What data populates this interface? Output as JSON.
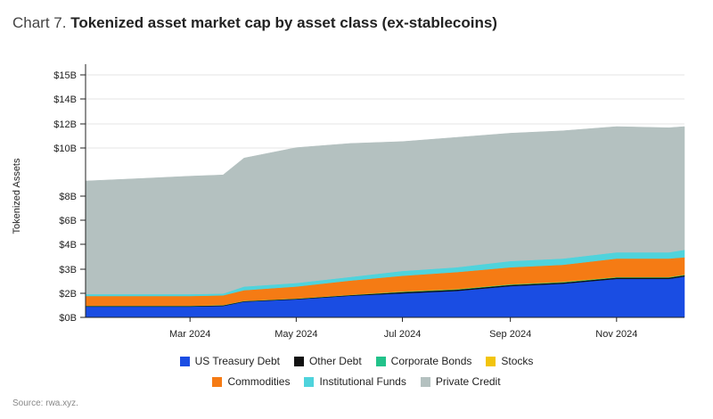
{
  "title": {
    "prefix": "Chart 7.",
    "main": "Tokenized asset market cap by asset class (ex-stablecoins)"
  },
  "source": "Source: rwa.xyz.",
  "chart_data": {
    "type": "area",
    "stacked": true,
    "ylabel": "Tokenized Assets",
    "y_ticks": [
      {
        "value": 0,
        "label": "$0B"
      },
      {
        "value": 2,
        "label": "$2B"
      },
      {
        "value": 3,
        "label": "$3B"
      },
      {
        "value": 4,
        "label": "$4B"
      },
      {
        "value": 6,
        "label": "$6B"
      },
      {
        "value": 8,
        "label": "$8B"
      },
      {
        "value": 10,
        "label": "$10B"
      },
      {
        "value": 12,
        "label": "$12B"
      },
      {
        "value": 14,
        "label": "$14B"
      },
      {
        "value": 15,
        "label": "$15B"
      }
    ],
    "x_ticks": [
      {
        "value": "2024-03-01",
        "label": "Mar 2024"
      },
      {
        "value": "2024-05-01",
        "label": "May 2024"
      },
      {
        "value": "2024-07-01",
        "label": "Jul 2024"
      },
      {
        "value": "2024-09-01",
        "label": "Sep 2024"
      },
      {
        "value": "2024-11-01",
        "label": "Nov 2024"
      }
    ],
    "x": [
      "2024-01-01",
      "2024-02-01",
      "2024-03-01",
      "2024-03-20",
      "2024-04-01",
      "2024-05-01",
      "2024-06-01",
      "2024-07-01",
      "2024-08-01",
      "2024-09-01",
      "2024-10-01",
      "2024-11-01",
      "2024-12-01",
      "2024-12-10"
    ],
    "series": [
      {
        "name": "US Treasury Debt",
        "color": "#1a4de3",
        "values": [
          0.9,
          0.9,
          0.9,
          0.95,
          1.3,
          1.5,
          1.8,
          2.0,
          2.1,
          2.3,
          2.4,
          2.6,
          2.6,
          2.7
        ]
      },
      {
        "name": "Other Debt",
        "color": "#111111",
        "values": [
          0.05,
          0.05,
          0.05,
          0.05,
          0.05,
          0.05,
          0.05,
          0.05,
          0.05,
          0.05,
          0.05,
          0.05,
          0.05,
          0.05
        ]
      },
      {
        "name": "Corporate Bonds",
        "color": "#22c28a",
        "values": [
          0.02,
          0.02,
          0.02,
          0.02,
          0.02,
          0.02,
          0.02,
          0.02,
          0.02,
          0.02,
          0.02,
          0.02,
          0.02,
          0.02
        ]
      },
      {
        "name": "Stocks",
        "color": "#f2c40c",
        "values": [
          0.01,
          0.01,
          0.01,
          0.01,
          0.01,
          0.01,
          0.01,
          0.01,
          0.01,
          0.01,
          0.01,
          0.01,
          0.01,
          0.01
        ]
      },
      {
        "name": "Commodities",
        "color": "#f57b14",
        "values": [
          0.8,
          0.8,
          0.8,
          0.8,
          0.75,
          0.7,
          0.65,
          0.65,
          0.7,
          0.7,
          0.7,
          0.75,
          0.75,
          0.7
        ]
      },
      {
        "name": "Institutional Funds",
        "color": "#4fd3dc",
        "values": [
          0.15,
          0.15,
          0.15,
          0.15,
          0.15,
          0.15,
          0.15,
          0.2,
          0.2,
          0.25,
          0.25,
          0.25,
          0.25,
          0.3
        ]
      },
      {
        "name": "Private Credit",
        "color": "#b4c1c0",
        "values": [
          6.7,
          6.8,
          6.9,
          6.9,
          7.3,
          7.6,
          7.7,
          7.6,
          7.8,
          7.9,
          8.0,
          8.1,
          8.0,
          8.0
        ]
      }
    ],
    "y_range": [
      0,
      15
    ],
    "x_range": [
      "2024-01-01",
      "2024-12-10"
    ],
    "grid": "horizontal",
    "legend_position": "bottom-center"
  },
  "legend": {
    "row1": [
      "US Treasury Debt",
      "Other Debt",
      "Corporate Bonds",
      "Stocks"
    ],
    "row2": [
      "Commodities",
      "Institutional Funds",
      "Private Credit"
    ]
  }
}
